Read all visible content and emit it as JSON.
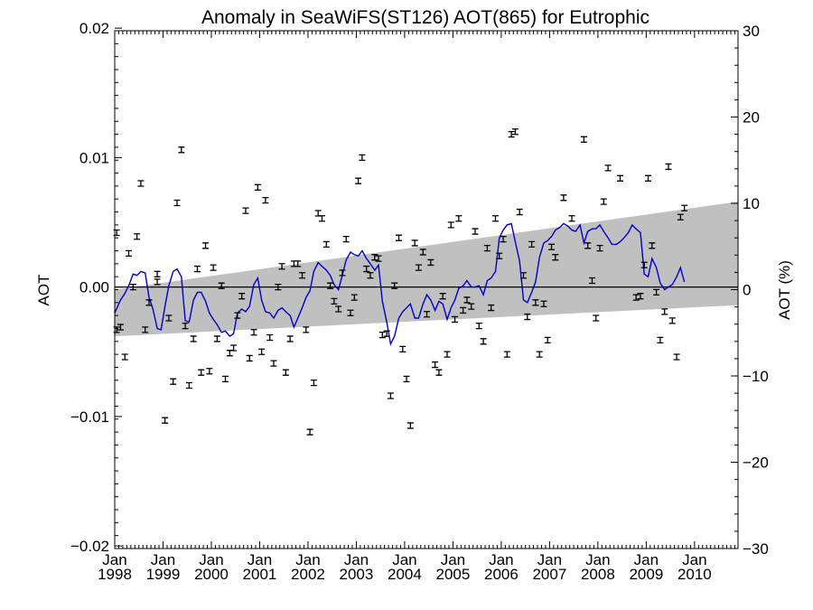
{
  "chart_data": {
    "type": "scatter",
    "title": "Anomaly in SeaWiFS(ST126) AOT(865) for Eutrophic",
    "ylabel_left": "AOT",
    "ylabel_right": "AOT (%)",
    "xlim": [
      1998.0,
      2010.9
    ],
    "ylim_left": [
      -0.0202,
      0.0198
    ],
    "ylim_right": [
      -30,
      30
    ],
    "yticks_left": [
      {
        "value": 0.02,
        "label": "0.02"
      },
      {
        "value": 0.01,
        "label": "0.01"
      },
      {
        "value": 0.0,
        "label": "0.00"
      },
      {
        "value": -0.01,
        "label": "−0.01"
      },
      {
        "value": -0.02,
        "label": "−0.02"
      }
    ],
    "yticks_right": [
      {
        "value": 30,
        "label": "30"
      },
      {
        "value": 20,
        "label": "20"
      },
      {
        "value": 10,
        "label": "10"
      },
      {
        "value": 0,
        "label": "0"
      },
      {
        "value": -10,
        "label": "−10"
      },
      {
        "value": -20,
        "label": "−20"
      },
      {
        "value": -30,
        "label": "−30"
      }
    ],
    "xticks": [
      {
        "value": 1998.0,
        "month": "Jan",
        "year": "1998"
      },
      {
        "value": 1999.0,
        "month": "Jan",
        "year": "1999"
      },
      {
        "value": 2000.0,
        "month": "Jan",
        "year": "2000"
      },
      {
        "value": 2001.0,
        "month": "Jan",
        "year": "2001"
      },
      {
        "value": 2002.0,
        "month": "Jan",
        "year": "2002"
      },
      {
        "value": 2003.0,
        "month": "Jan",
        "year": "2003"
      },
      {
        "value": 2004.0,
        "month": "Jan",
        "year": "2004"
      },
      {
        "value": 2005.0,
        "month": "Jan",
        "year": "2005"
      },
      {
        "value": 2006.0,
        "month": "Jan",
        "year": "2006"
      },
      {
        "value": 2007.0,
        "month": "Jan",
        "year": "2007"
      },
      {
        "value": 2008.0,
        "month": "Jan",
        "year": "2008"
      },
      {
        "value": 2009.0,
        "month": "Jan",
        "year": "2009"
      },
      {
        "value": 2010.0,
        "month": "Jan",
        "year": "2010"
      }
    ],
    "trend_band": {
      "upper": [
        [
          1998.0,
          -0.0002
        ],
        [
          2010.9,
          0.0066
        ]
      ],
      "lower": [
        [
          1998.0,
          -0.0038
        ],
        [
          2010.9,
          -0.0014
        ]
      ]
    },
    "zero_line": 0.0,
    "anomaly_points": [
      [
        1998.04,
        0.0042
      ],
      [
        1998.04,
        -0.0033
      ],
      [
        1998.12,
        -0.0031
      ],
      [
        1998.21,
        -0.0054
      ],
      [
        1998.29,
        0.0026
      ],
      [
        1998.38,
        0.0
      ],
      [
        1998.46,
        0.0039
      ],
      [
        1998.54,
        0.008
      ],
      [
        1998.63,
        -0.0033
      ],
      [
        1998.71,
        -0.0012
      ],
      [
        1998.88,
        0.001
      ],
      [
        1998.88,
        0.0004
      ],
      [
        1999.04,
        -0.0103
      ],
      [
        1999.12,
        -0.0024
      ],
      [
        1999.21,
        -0.0073
      ],
      [
        1999.29,
        0.0065
      ],
      [
        1999.38,
        0.0106
      ],
      [
        1999.46,
        -0.003
      ],
      [
        1999.54,
        -0.0076
      ],
      [
        1999.63,
        -0.004
      ],
      [
        1999.71,
        0.0014
      ],
      [
        1999.79,
        -0.0066
      ],
      [
        1999.88,
        0.0032
      ],
      [
        1999.96,
        -0.0065
      ],
      [
        2000.04,
        0.0015
      ],
      [
        2000.12,
        -0.004
      ],
      [
        2000.21,
        0.0001
      ],
      [
        2000.29,
        -0.0071
      ],
      [
        2000.38,
        -0.0051
      ],
      [
        2000.46,
        -0.0047
      ],
      [
        2000.54,
        -0.0022
      ],
      [
        2000.63,
        -0.0007
      ],
      [
        2000.71,
        0.0059
      ],
      [
        2000.79,
        -0.0055
      ],
      [
        2000.88,
        -0.0035
      ],
      [
        2000.96,
        0.0077
      ],
      [
        2001.04,
        -0.005
      ],
      [
        2001.12,
        0.0067
      ],
      [
        2001.21,
        -0.0039
      ],
      [
        2001.29,
        -0.0059
      ],
      [
        2001.38,
        0.0
      ],
      [
        2001.46,
        0.0016
      ],
      [
        2001.54,
        -0.0066
      ],
      [
        2001.63,
        -0.004
      ],
      [
        2001.71,
        0.0018
      ],
      [
        2001.79,
        0.0018
      ],
      [
        2001.88,
        0.0009
      ],
      [
        2001.96,
        -0.0033
      ],
      [
        2002.04,
        -0.0112
      ],
      [
        2002.12,
        -0.0074
      ],
      [
        2002.21,
        0.0057
      ],
      [
        2002.29,
        0.0053
      ],
      [
        2002.38,
        0.0033
      ],
      [
        2002.46,
        0.0001
      ],
      [
        2002.54,
        -0.0011
      ],
      [
        2002.63,
        -0.0017
      ],
      [
        2002.71,
        0.0011
      ],
      [
        2002.79,
        0.0037
      ],
      [
        2002.88,
        -0.002
      ],
      [
        2002.96,
        -0.0008
      ],
      [
        2003.04,
        0.0082
      ],
      [
        2003.12,
        0.01
      ],
      [
        2003.21,
        0.0014
      ],
      [
        2003.29,
        0.0009
      ],
      [
        2003.38,
        0.0023
      ],
      [
        2003.46,
        0.0022
      ],
      [
        2003.54,
        -0.0037
      ],
      [
        2003.63,
        -0.0036
      ],
      [
        2003.71,
        -0.0084
      ],
      [
        2003.79,
        0.0001
      ],
      [
        2003.88,
        0.0038
      ],
      [
        2003.96,
        -0.0048
      ],
      [
        2004.04,
        -0.0071
      ],
      [
        2004.12,
        -0.0107
      ],
      [
        2004.21,
        0.0034
      ],
      [
        2004.29,
        0.0015
      ],
      [
        2004.38,
        0.0027
      ],
      [
        2004.46,
        -0.0021
      ],
      [
        2004.54,
        0.0019
      ],
      [
        2004.63,
        -0.006
      ],
      [
        2004.71,
        -0.0066
      ],
      [
        2004.79,
        -0.0007
      ],
      [
        2004.88,
        -0.0052
      ],
      [
        2004.96,
        0.0048
      ],
      [
        2005.04,
        -0.0025
      ],
      [
        2005.12,
        0.0053
      ],
      [
        2005.21,
        -0.0018
      ],
      [
        2005.29,
        -0.001
      ],
      [
        2005.38,
        -0.0015
      ],
      [
        2005.46,
        0.0043
      ],
      [
        2005.54,
        -0.003
      ],
      [
        2005.63,
        -0.0042
      ],
      [
        2005.71,
        0.003
      ],
      [
        2005.79,
        -0.0016
      ],
      [
        2005.88,
        0.0053
      ],
      [
        2005.96,
        0.0024
      ],
      [
        2006.04,
        0.0037
      ],
      [
        2006.12,
        -0.0052
      ],
      [
        2006.21,
        0.0118
      ],
      [
        2006.29,
        0.012
      ],
      [
        2006.38,
        0.0058
      ],
      [
        2006.46,
        0.0009
      ],
      [
        2006.54,
        -0.0023
      ],
      [
        2006.63,
        0.0033
      ],
      [
        2006.71,
        -0.0012
      ],
      [
        2006.79,
        -0.0052
      ],
      [
        2006.88,
        -0.0013
      ],
      [
        2006.96,
        -0.0041
      ],
      [
        2007.04,
        0.0031
      ],
      [
        2007.12,
        0.0023
      ],
      [
        2007.29,
        0.0069
      ],
      [
        2007.46,
        0.0053
      ],
      [
        2007.71,
        0.0114
      ],
      [
        2007.79,
        0.0032
      ],
      [
        2007.88,
        0.0005
      ],
      [
        2007.96,
        -0.0024
      ],
      [
        2008.04,
        0.003
      ],
      [
        2008.12,
        0.0066
      ],
      [
        2008.21,
        0.0092
      ],
      [
        2008.46,
        0.0084
      ],
      [
        2008.79,
        -0.0008
      ],
      [
        2008.88,
        -0.0007
      ],
      [
        2008.96,
        0.0017
      ],
      [
        2009.04,
        0.0084
      ],
      [
        2009.12,
        0.0032
      ],
      [
        2009.21,
        -0.0004
      ],
      [
        2009.29,
        -0.0041
      ],
      [
        2009.38,
        -0.0019
      ],
      [
        2009.46,
        0.0093
      ],
      [
        2009.54,
        -0.0026
      ],
      [
        2009.63,
        -0.0054
      ],
      [
        2009.71,
        0.0054
      ],
      [
        2009.79,
        0.0061
      ]
    ],
    "smoothed_line": [
      [
        1998.0,
        -0.002
      ],
      [
        1998.12,
        -0.001
      ],
      [
        1998.21,
        -0.0005
      ],
      [
        1998.29,
        0.0001
      ],
      [
        1998.38,
        0.001
      ],
      [
        1998.46,
        0.0009
      ],
      [
        1998.54,
        0.0012
      ],
      [
        1998.63,
        0.0011
      ],
      [
        1998.71,
        -0.0008
      ],
      [
        1998.79,
        -0.0017
      ],
      [
        1998.88,
        -0.0032
      ],
      [
        1998.96,
        -0.0033
      ],
      [
        1999.04,
        -0.0015
      ],
      [
        1999.12,
        0.0001
      ],
      [
        1999.21,
        0.0012
      ],
      [
        1999.29,
        0.0014
      ],
      [
        1999.38,
        0.0008
      ],
      [
        1999.46,
        -0.0026
      ],
      [
        1999.54,
        -0.0027
      ],
      [
        1999.63,
        -0.001
      ],
      [
        1999.71,
        -0.0004
      ],
      [
        1999.79,
        -0.0004
      ],
      [
        1999.88,
        -0.0011
      ],
      [
        1999.96,
        -0.002
      ],
      [
        2000.04,
        -0.0025
      ],
      [
        2000.12,
        -0.0029
      ],
      [
        2000.21,
        -0.0035
      ],
      [
        2000.29,
        -0.0034
      ],
      [
        2000.38,
        -0.0038
      ],
      [
        2000.46,
        -0.0036
      ],
      [
        2000.54,
        -0.002
      ],
      [
        2000.63,
        -0.0017
      ],
      [
        2000.71,
        -0.0019
      ],
      [
        2000.79,
        -0.0015
      ],
      [
        2000.88,
        0.0002
      ],
      [
        2000.96,
        0.0007
      ],
      [
        2001.04,
        -0.001
      ],
      [
        2001.12,
        -0.0019
      ],
      [
        2001.21,
        -0.002
      ],
      [
        2001.29,
        -0.0024
      ],
      [
        2001.38,
        -0.0018
      ],
      [
        2001.46,
        -0.0016
      ],
      [
        2001.54,
        -0.0019
      ],
      [
        2001.63,
        -0.0022
      ],
      [
        2001.71,
        -0.0031
      ],
      [
        2001.79,
        -0.0024
      ],
      [
        2001.88,
        -0.0016
      ],
      [
        2001.96,
        -0.0008
      ],
      [
        2002.04,
        -0.0003
      ],
      [
        2002.12,
        0.0012
      ],
      [
        2002.21,
        0.0019
      ],
      [
        2002.29,
        0.0016
      ],
      [
        2002.38,
        0.0013
      ],
      [
        2002.46,
        0.0009
      ],
      [
        2002.54,
        0.0002
      ],
      [
        2002.63,
        -0.0002
      ],
      [
        2002.71,
        0.0009
      ],
      [
        2002.79,
        0.0021
      ],
      [
        2002.88,
        0.0027
      ],
      [
        2002.96,
        0.0025
      ],
      [
        2003.04,
        0.0024
      ],
      [
        2003.12,
        0.0028
      ],
      [
        2003.21,
        0.0022
      ],
      [
        2003.29,
        0.0018
      ],
      [
        2003.38,
        0.0013
      ],
      [
        2003.46,
        0.0017
      ],
      [
        2003.54,
        -0.0011
      ],
      [
        2003.63,
        -0.0027
      ],
      [
        2003.71,
        -0.0044
      ],
      [
        2003.79,
        -0.0038
      ],
      [
        2003.88,
        -0.0024
      ],
      [
        2003.96,
        -0.0019
      ],
      [
        2004.04,
        -0.0016
      ],
      [
        2004.12,
        -0.0013
      ],
      [
        2004.21,
        -0.0024
      ],
      [
        2004.29,
        -0.0024
      ],
      [
        2004.38,
        -0.0013
      ],
      [
        2004.46,
        -0.0006
      ],
      [
        2004.54,
        -0.001
      ],
      [
        2004.63,
        -0.0018
      ],
      [
        2004.71,
        -0.0011
      ],
      [
        2004.79,
        -0.0013
      ],
      [
        2004.88,
        -0.0025
      ],
      [
        2004.96,
        -0.0016
      ],
      [
        2005.04,
        -0.001
      ],
      [
        2005.12,
        -0.0001
      ],
      [
        2005.21,
        0.0001
      ],
      [
        2005.29,
        0.0005
      ],
      [
        2005.38,
        0.0
      ],
      [
        2005.46,
        0.0
      ],
      [
        2005.54,
        0.0001
      ],
      [
        2005.63,
        -0.0006
      ],
      [
        2005.71,
        0.0005
      ],
      [
        2005.79,
        0.0007
      ],
      [
        2005.88,
        0.0012
      ],
      [
        2005.96,
        0.0038
      ],
      [
        2006.04,
        0.0044
      ],
      [
        2006.12,
        0.0048
      ],
      [
        2006.21,
        0.0049
      ],
      [
        2006.29,
        0.0035
      ],
      [
        2006.38,
        0.002
      ],
      [
        2006.46,
        -0.001
      ],
      [
        2006.54,
        -0.0012
      ],
      [
        2006.63,
        -0.0004
      ],
      [
        2006.71,
        0.0004
      ],
      [
        2006.79,
        0.0023
      ],
      [
        2006.88,
        0.0034
      ],
      [
        2006.96,
        0.0036
      ],
      [
        2007.04,
        0.0039
      ],
      [
        2007.12,
        0.0044
      ],
      [
        2007.21,
        0.0046
      ],
      [
        2007.29,
        0.0049
      ],
      [
        2007.38,
        0.0047
      ],
      [
        2007.46,
        0.0044
      ],
      [
        2007.54,
        0.0043
      ],
      [
        2007.63,
        0.0048
      ],
      [
        2007.71,
        0.0034
      ],
      [
        2007.79,
        0.0043
      ],
      [
        2007.88,
        0.0045
      ],
      [
        2007.96,
        0.0045
      ],
      [
        2008.04,
        0.0048
      ],
      [
        2008.12,
        0.0043
      ],
      [
        2008.21,
        0.0038
      ],
      [
        2008.29,
        0.0033
      ],
      [
        2008.38,
        0.0033
      ],
      [
        2008.46,
        0.0035
      ],
      [
        2008.54,
        0.0038
      ],
      [
        2008.63,
        0.0042
      ],
      [
        2008.71,
        0.0048
      ],
      [
        2008.79,
        0.0045
      ],
      [
        2008.88,
        0.0042
      ],
      [
        2008.96,
        0.001
      ],
      [
        2009.04,
        0.0008
      ],
      [
        2009.12,
        0.0022
      ],
      [
        2009.21,
        0.0015
      ],
      [
        2009.29,
        0.0003
      ],
      [
        2009.38,
        -0.0002
      ],
      [
        2009.46,
        0.0
      ],
      [
        2009.54,
        0.0002
      ],
      [
        2009.63,
        0.0008
      ],
      [
        2009.71,
        0.0015
      ],
      [
        2009.79,
        0.0004
      ]
    ],
    "grid": false,
    "legend": "none",
    "colors": {
      "points": "#000000",
      "smoothed_line": "#0000cc",
      "trend_band": "#c0c0c0",
      "axes": "#000000"
    }
  }
}
